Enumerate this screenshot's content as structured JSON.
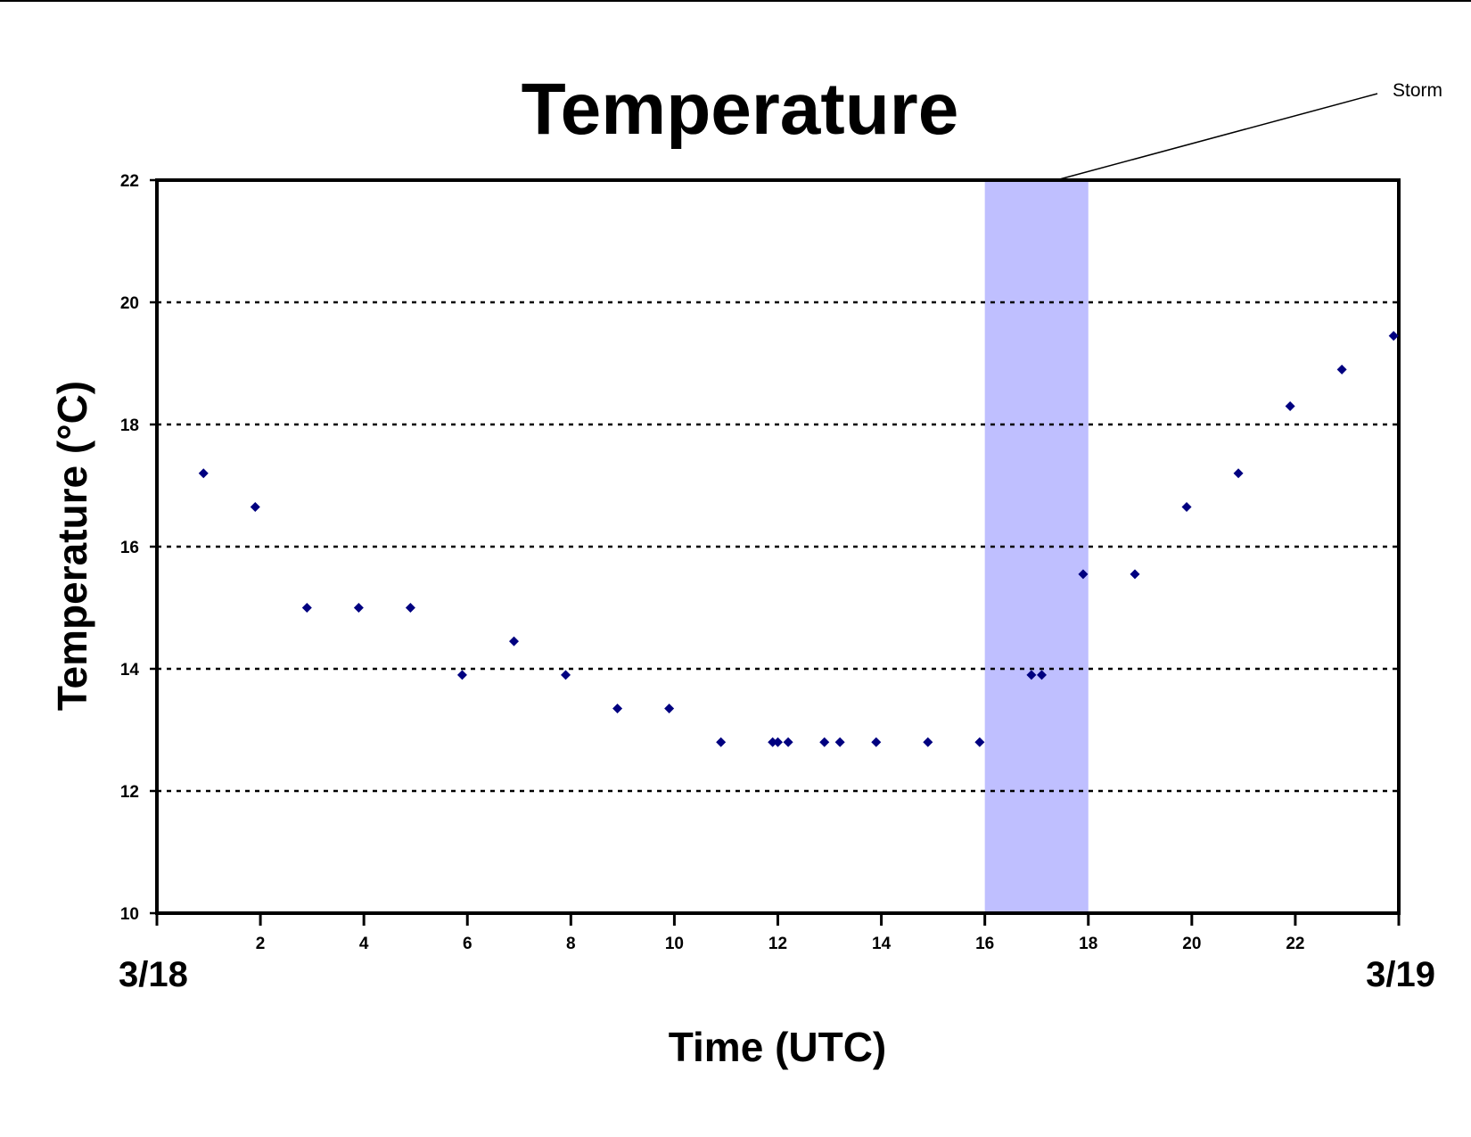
{
  "chart_data": {
    "type": "scatter",
    "title": "Temperature",
    "xlabel": "Time (UTC)",
    "ylabel": "Temperature (°C)",
    "xlim": [
      0,
      24
    ],
    "ylim": [
      10,
      22
    ],
    "x_ticks": [
      2,
      4,
      6,
      8,
      10,
      12,
      14,
      16,
      18,
      20,
      22
    ],
    "y_ticks": [
      10,
      12,
      14,
      16,
      18,
      20,
      22
    ],
    "grid": "horizontal dotted at 12, 14, 16, 18, 20",
    "start_date_label": "3/18",
    "end_date_label": "3/19",
    "marker_color": "#000080",
    "shaded_region": {
      "x_range": [
        16,
        18
      ],
      "label": "Storm",
      "color": "#bfbfff"
    },
    "series": [
      {
        "x": [
          0.9,
          1.9,
          2.9,
          3.9,
          4.9,
          5.9,
          6.9,
          7.9,
          8.9,
          9.9,
          10.9,
          11.9,
          12.0,
          12.2,
          12.9,
          13.2,
          13.9,
          14.9,
          15.9,
          16.9,
          17.1,
          17.9,
          18.9,
          19.9,
          20.9,
          21.9,
          22.9,
          23.9
        ],
        "y": [
          17.2,
          16.65,
          15.0,
          15.0,
          15.0,
          13.9,
          14.45,
          13.9,
          13.35,
          13.35,
          12.8,
          12.8,
          12.8,
          12.8,
          12.8,
          12.8,
          12.8,
          12.8,
          12.8,
          13.9,
          13.9,
          15.55,
          15.55,
          16.65,
          17.2,
          18.3,
          18.9,
          19.45
        ]
      }
    ]
  }
}
